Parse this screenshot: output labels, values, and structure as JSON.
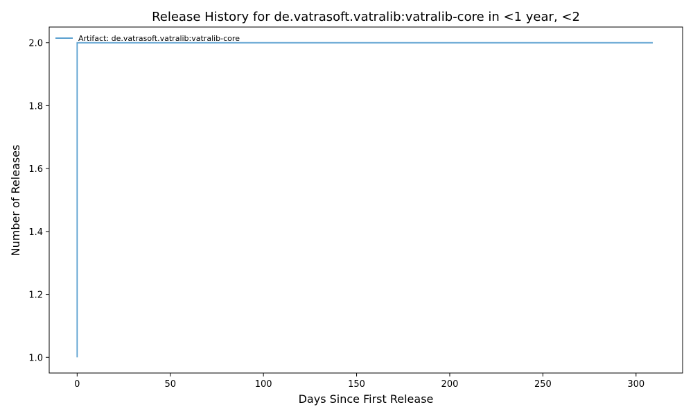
{
  "chart_data": {
    "type": "line",
    "title": "Release History for de.vatrasoft.vatralib:vatralib-core in <1 year, <2",
    "xlabel": "Days Since First Release",
    "ylabel": "Number of Releases",
    "xlim": [
      -15,
      325
    ],
    "ylim": [
      0.95,
      2.05
    ],
    "xticks": [
      0,
      50,
      100,
      150,
      200,
      250,
      300
    ],
    "yticks": [
      1.0,
      1.2,
      1.4,
      1.6,
      1.8,
      2.0
    ],
    "xtick_labels": [
      "0",
      "50",
      "100",
      "150",
      "200",
      "250",
      "300"
    ],
    "ytick_labels": [
      "1.0",
      "1.2",
      "1.4",
      "1.6",
      "1.8",
      "2.0"
    ],
    "grid": false,
    "legend_position": "top-left",
    "series": [
      {
        "name": "Artifact: de.vatrasoft.vatralib:vatralib-core",
        "color": "#5aa0d0",
        "x": [
          0,
          0,
          309
        ],
        "y": [
          1,
          2,
          2
        ]
      }
    ]
  }
}
